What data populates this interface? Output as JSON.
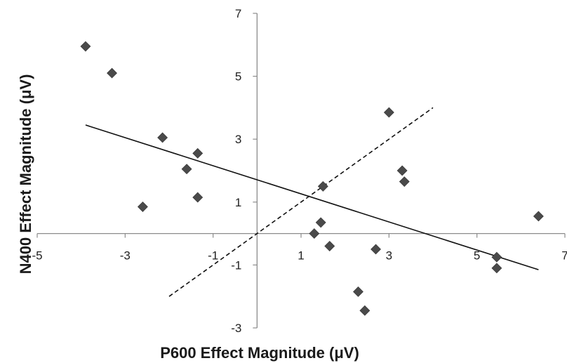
{
  "chart_data": {
    "type": "scatter",
    "title": "",
    "xlabel": "P600 Effect Magnitude (μV)",
    "ylabel": "N400 Effect Magnitude (μV)",
    "xlim": [
      -5,
      7
    ],
    "ylim": [
      -3,
      7
    ],
    "x_ticks": [
      -5,
      -3,
      -1,
      1,
      3,
      5,
      7
    ],
    "y_ticks": [
      -3,
      -1,
      1,
      3,
      5,
      7
    ],
    "x_tick_labels": [
      "-5",
      "-3",
      "-1",
      "1",
      "3",
      "5",
      "7"
    ],
    "y_tick_labels": [
      "-3",
      "-1",
      "1",
      "3",
      "5",
      "7"
    ],
    "grid": false,
    "marker": "diamond",
    "marker_color": "#4a4a4a",
    "points": [
      {
        "x": -3.9,
        "y": 5.95
      },
      {
        "x": -3.3,
        "y": 5.1
      },
      {
        "x": -2.6,
        "y": 0.85
      },
      {
        "x": -2.15,
        "y": 3.05
      },
      {
        "x": -1.6,
        "y": 2.05
      },
      {
        "x": -1.35,
        "y": 2.55
      },
      {
        "x": -1.35,
        "y": 1.15
      },
      {
        "x": 1.3,
        "y": 0.0
      },
      {
        "x": 1.45,
        "y": 0.35
      },
      {
        "x": 1.5,
        "y": 1.5
      },
      {
        "x": 1.65,
        "y": -0.4
      },
      {
        "x": 2.3,
        "y": -1.85
      },
      {
        "x": 2.45,
        "y": -2.45
      },
      {
        "x": 2.7,
        "y": -0.5
      },
      {
        "x": 3.0,
        "y": 3.85
      },
      {
        "x": 3.3,
        "y": 2.0
      },
      {
        "x": 3.35,
        "y": 1.65
      },
      {
        "x": 5.45,
        "y": -0.75
      },
      {
        "x": 5.45,
        "y": -1.1
      },
      {
        "x": 6.4,
        "y": 0.55
      }
    ],
    "lines": [
      {
        "style": "solid",
        "x": [
          -3.9,
          6.4
        ],
        "y": [
          3.45,
          -1.15
        ]
      },
      {
        "style": "dashed",
        "x": [
          -2.0,
          4.0
        ],
        "y": [
          -2.0,
          4.0
        ]
      }
    ]
  }
}
